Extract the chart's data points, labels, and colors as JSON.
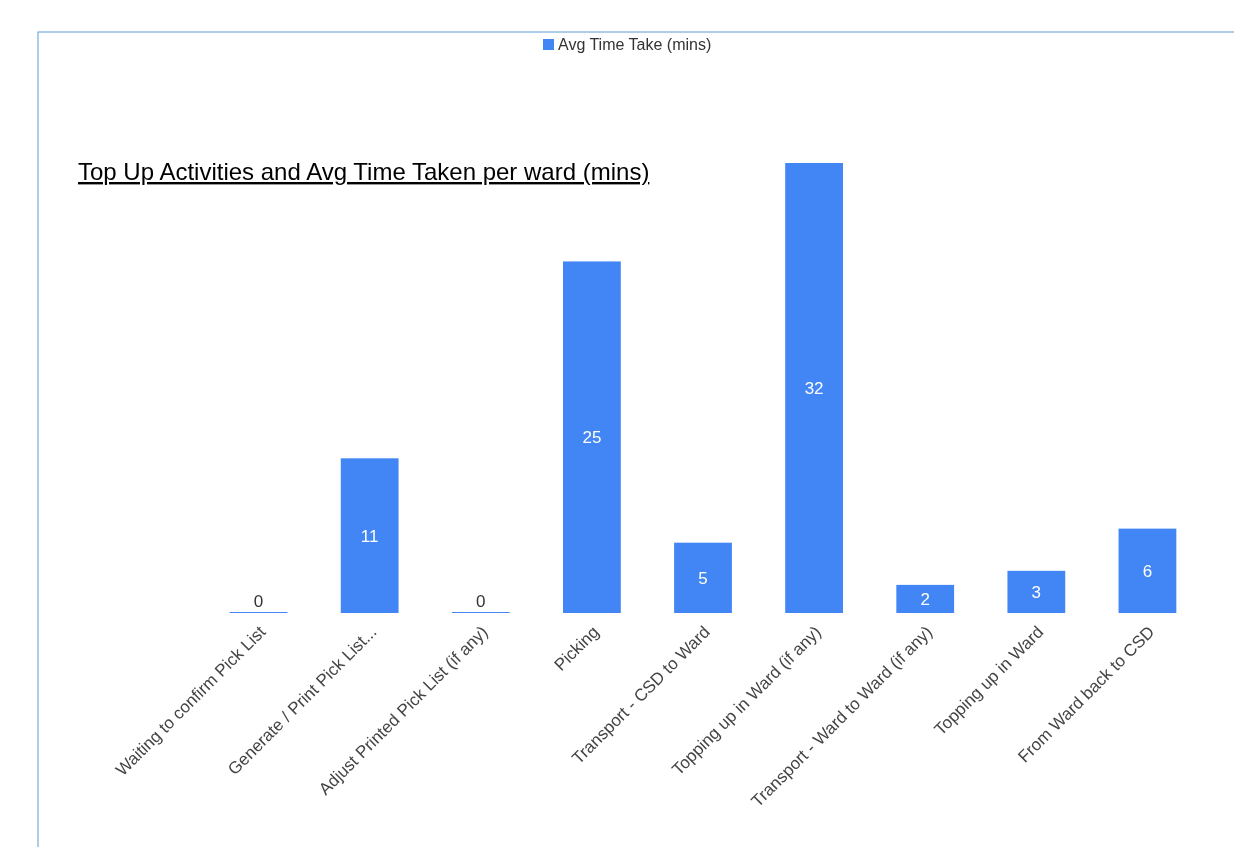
{
  "chart_data": {
    "type": "bar",
    "title": "Top Up Activities and Avg Time Taken per ward (mins)",
    "categories": [
      "Waiting to confirm Pick List",
      "Generate / Print Pick List...",
      "Adjust Printed Pick List (if any)",
      "Picking",
      "Transport - CSD to Ward",
      "Topping up in Ward (if any)",
      "Transport - Ward to Ward (if any)",
      "Topping up in Ward",
      "From Ward back to CSD"
    ],
    "series": [
      {
        "name": "Avg Time Take (mins)",
        "color": "#4285f4",
        "values": [
          0,
          11,
          0,
          25,
          5,
          32,
          2,
          3,
          6
        ]
      }
    ],
    "data_labels": true,
    "legend": "top",
    "grid": false
  }
}
